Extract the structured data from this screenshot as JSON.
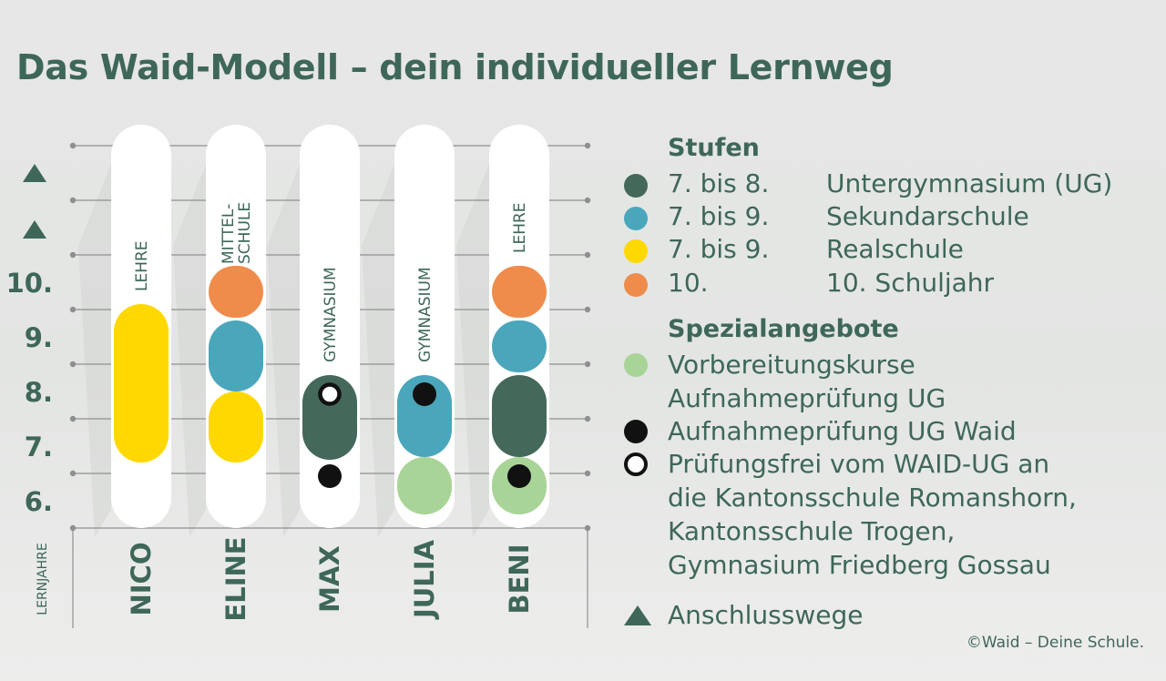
{
  "title": "Das Waid-Modell – dein individueller Lernweg",
  "colors": {
    "ug": "#44685a",
    "sek": "#4aa6bb",
    "real": "#fed800",
    "schuljahr10": "#ef8c4b",
    "vorbereitung": "#a9d497",
    "pruefung": "#111111",
    "text": "#3e6759",
    "bar": "#ffffff",
    "grid": "#8f8f8f"
  },
  "axis": {
    "title": "LERNJAHRE",
    "year_labels": [
      "10.",
      "9.",
      "8.",
      "7.",
      "6."
    ],
    "arrow_count": 2
  },
  "students": [
    {
      "name": "NICO",
      "path_label": "LEHRE",
      "segments": [
        {
          "type": "real",
          "from": 6.7,
          "to": 9.6
        }
      ],
      "markers": []
    },
    {
      "name": "ELINE",
      "path_label": "MITTEL-\nSCHULE",
      "segments": [
        {
          "type": "real",
          "from": 6.7,
          "to": 8.0
        },
        {
          "type": "sek",
          "from": 8.0,
          "to": 9.3
        },
        {
          "type": "schuljahr10",
          "from": 9.35,
          "to": 10.3
        }
      ],
      "markers": []
    },
    {
      "name": "MAX",
      "path_label": "GYMNASIUM",
      "segments": [
        {
          "type": "ug",
          "from": 6.75,
          "to": 8.3
        }
      ],
      "markers": [
        {
          "type": "pruefung",
          "year": 6.45
        },
        {
          "type": "pruefungsfrei",
          "year": 7.95
        }
      ]
    },
    {
      "name": "JULIA",
      "path_label": "GYMNASIUM",
      "segments": [
        {
          "type": "vorbereitung",
          "from": 5.75,
          "to": 6.8
        },
        {
          "type": "sek",
          "from": 6.8,
          "to": 8.3
        }
      ],
      "markers": [
        {
          "type": "pruefung",
          "year": 7.95
        }
      ]
    },
    {
      "name": "BENI",
      "path_label": "LEHRE",
      "segments": [
        {
          "type": "vorbereitung",
          "from": 5.75,
          "to": 6.8
        },
        {
          "type": "ug",
          "from": 6.8,
          "to": 8.3
        },
        {
          "type": "sek",
          "from": 8.35,
          "to": 9.3
        },
        {
          "type": "schuljahr10",
          "from": 9.35,
          "to": 10.3
        }
      ],
      "markers": [
        {
          "type": "pruefung",
          "year": 6.45
        }
      ]
    }
  ],
  "legend": {
    "stufen_heading": "Stufen",
    "stufen": [
      {
        "color_key": "ug",
        "range": "7. bis 8.",
        "name": "Untergymnasium (UG)"
      },
      {
        "color_key": "sek",
        "range": "7. bis 9.",
        "name": "Sekundarschule"
      },
      {
        "color_key": "real",
        "range": "7. bis 9.",
        "name": "Realschule"
      },
      {
        "color_key": "schuljahr10",
        "range": "10.",
        "name": "10. Schuljahr"
      }
    ],
    "spezial_heading": "Spezialangebote",
    "spezial": [
      {
        "icon": "vorbereitung-dot-icon",
        "lines": [
          "Vorbereitungskurse",
          "Aufnahmeprüfung UG"
        ]
      },
      {
        "icon": "pruefung-dot-icon",
        "lines": [
          "Aufnahmeprüfung UG Waid"
        ]
      },
      {
        "icon": "pruefungsfrei-ring-icon",
        "lines": [
          "Prüfungsfrei vom WAID-UG an",
          "die Kantonsschule Romanshorn,",
          "Kantonsschule Trogen,",
          "Gymnasium Friedberg Gossau"
        ]
      }
    ],
    "anschluss": {
      "icon": "triangle-up-icon",
      "label": "Anschlusswege"
    }
  },
  "copyright": "©Waid – Deine Schule."
}
